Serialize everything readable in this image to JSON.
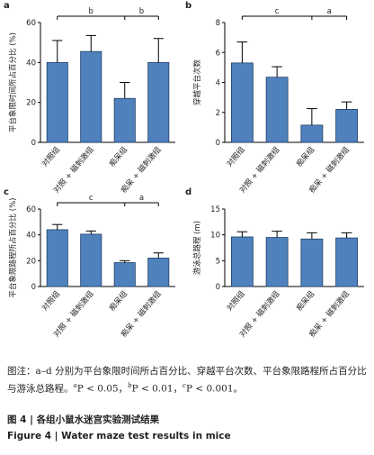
{
  "chart_data": [
    {
      "type": "bar",
      "panel": "a",
      "ylabel": "平台象限时间所占百分比 (%)",
      "categories": [
        "对照组",
        "对照 + 磁刺激组",
        "痴呆组",
        "痴呆 + 磁刺激组"
      ],
      "values": [
        40,
        45.5,
        22,
        40
      ],
      "errors": [
        11,
        8,
        8,
        12
      ],
      "color": "#4f81bd",
      "ylim": [
        0,
        60
      ],
      "yticks": [
        0,
        20,
        40,
        60
      ],
      "annotations": [
        "b",
        "b"
      ]
    },
    {
      "type": "bar",
      "panel": "b",
      "ylabel": "穿越平台次数",
      "categories": [
        "对照组",
        "对照 + 磁刺激组",
        "痴呆组",
        "痴呆 + 磁刺激组"
      ],
      "values": [
        5.3,
        4.35,
        1.15,
        2.2
      ],
      "errors": [
        1.4,
        0.7,
        1.1,
        0.5
      ],
      "color": "#4f81bd",
      "ylim": [
        0,
        8
      ],
      "yticks": [
        0,
        2,
        4,
        6,
        8
      ],
      "annotations": [
        "c",
        "a"
      ]
    },
    {
      "type": "bar",
      "panel": "c",
      "ylabel": "平台象限路程所占百分比 (%)",
      "categories": [
        "对照组",
        "对照 + 磁刺激组",
        "痴呆组",
        "痴呆 + 磁刺激组"
      ],
      "values": [
        44,
        40.5,
        18.5,
        22
      ],
      "errors": [
        4,
        2.5,
        1.5,
        4
      ],
      "color": "#4f81bd",
      "ylim": [
        0,
        60
      ],
      "yticks": [
        0,
        20,
        40,
        60
      ],
      "annotations": [
        "c",
        "a"
      ]
    },
    {
      "type": "bar",
      "panel": "d",
      "ylabel": "游泳总路程 (m)",
      "categories": [
        "对照组",
        "对照 + 磁刺激组",
        "痴呆组",
        "痴呆 + 磁刺激组"
      ],
      "values": [
        9.6,
        9.5,
        9.2,
        9.4
      ],
      "errors": [
        1,
        1.2,
        1.2,
        1
      ],
      "color": "#4f81bd",
      "ylim": [
        0,
        15
      ],
      "yticks": [
        0,
        5,
        10,
        15
      ],
      "annotations": []
    }
  ],
  "caption": {
    "note": [
      "图注：a–d 分别为平台象限时间所占百分比、穿越平台次数、平台象限路程所占百分比与游泳总路程。",
      "a",
      "P < 0.05，",
      "b",
      "P < 0.01，",
      "c",
      "P < 0.001。"
    ],
    "figure_cn": "图 4 | 各组小鼠水迷宫实验测试结果",
    "figure_en": "Figure 4 | Water maze test results in mice"
  }
}
